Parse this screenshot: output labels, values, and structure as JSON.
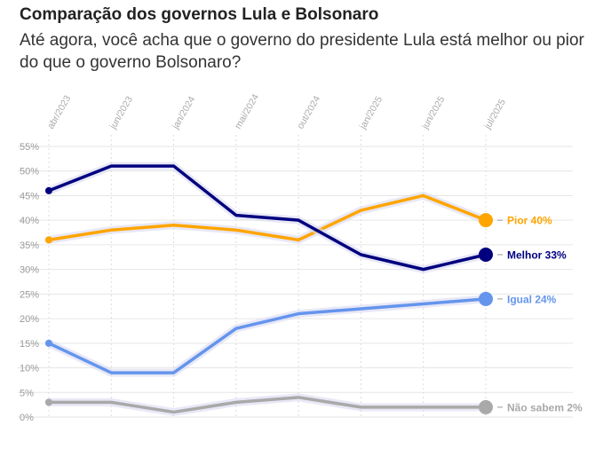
{
  "header": {
    "title": "Comparação dos governos Lula e Bolsonaro",
    "subtitle": "Até agora, você acha que o governo do presidente Lula está melhor ou pior do que o governo Bolsonaro?"
  },
  "chart_data": {
    "type": "line",
    "title": "Comparação dos governos Lula e Bolsonaro",
    "subtitle": "Até agora, você acha que o governo do presidente Lula está melhor ou pior do que o governo Bolsonaro?",
    "x_ticks": [
      "abr/2023",
      "jun/2023",
      "jan/2024",
      "mai/2024",
      "out/2024",
      "jan/2025",
      "jun/2025",
      "jul/2025"
    ],
    "y_ticks": [
      "55%",
      "50%",
      "45%",
      "40%",
      "35%",
      "30%",
      "25%",
      "20%",
      "15%",
      "10%",
      "5%",
      "0%"
    ],
    "ylim": [
      0,
      55
    ],
    "grid": true,
    "legend": "end-labels",
    "series": [
      {
        "name": "Pior",
        "end_label": "Pior 40%",
        "color": "#FFA500",
        "values": [
          36,
          38,
          39,
          38,
          36,
          42,
          45,
          40
        ]
      },
      {
        "name": "Melhor",
        "end_label": "Melhor 33%",
        "color": "#00007F",
        "values": [
          46,
          51,
          51,
          41,
          40,
          33,
          30,
          33
        ]
      },
      {
        "name": "Igual",
        "end_label": "Igual 24%",
        "color": "#6495ED",
        "values": [
          15,
          9,
          9,
          18,
          21,
          22,
          23,
          24
        ]
      },
      {
        "name": "Não sabem",
        "end_label": "Não sabem 2%",
        "color": "#A9A9A9",
        "values": [
          3,
          3,
          1,
          3,
          4,
          2,
          2,
          2
        ]
      }
    ]
  }
}
